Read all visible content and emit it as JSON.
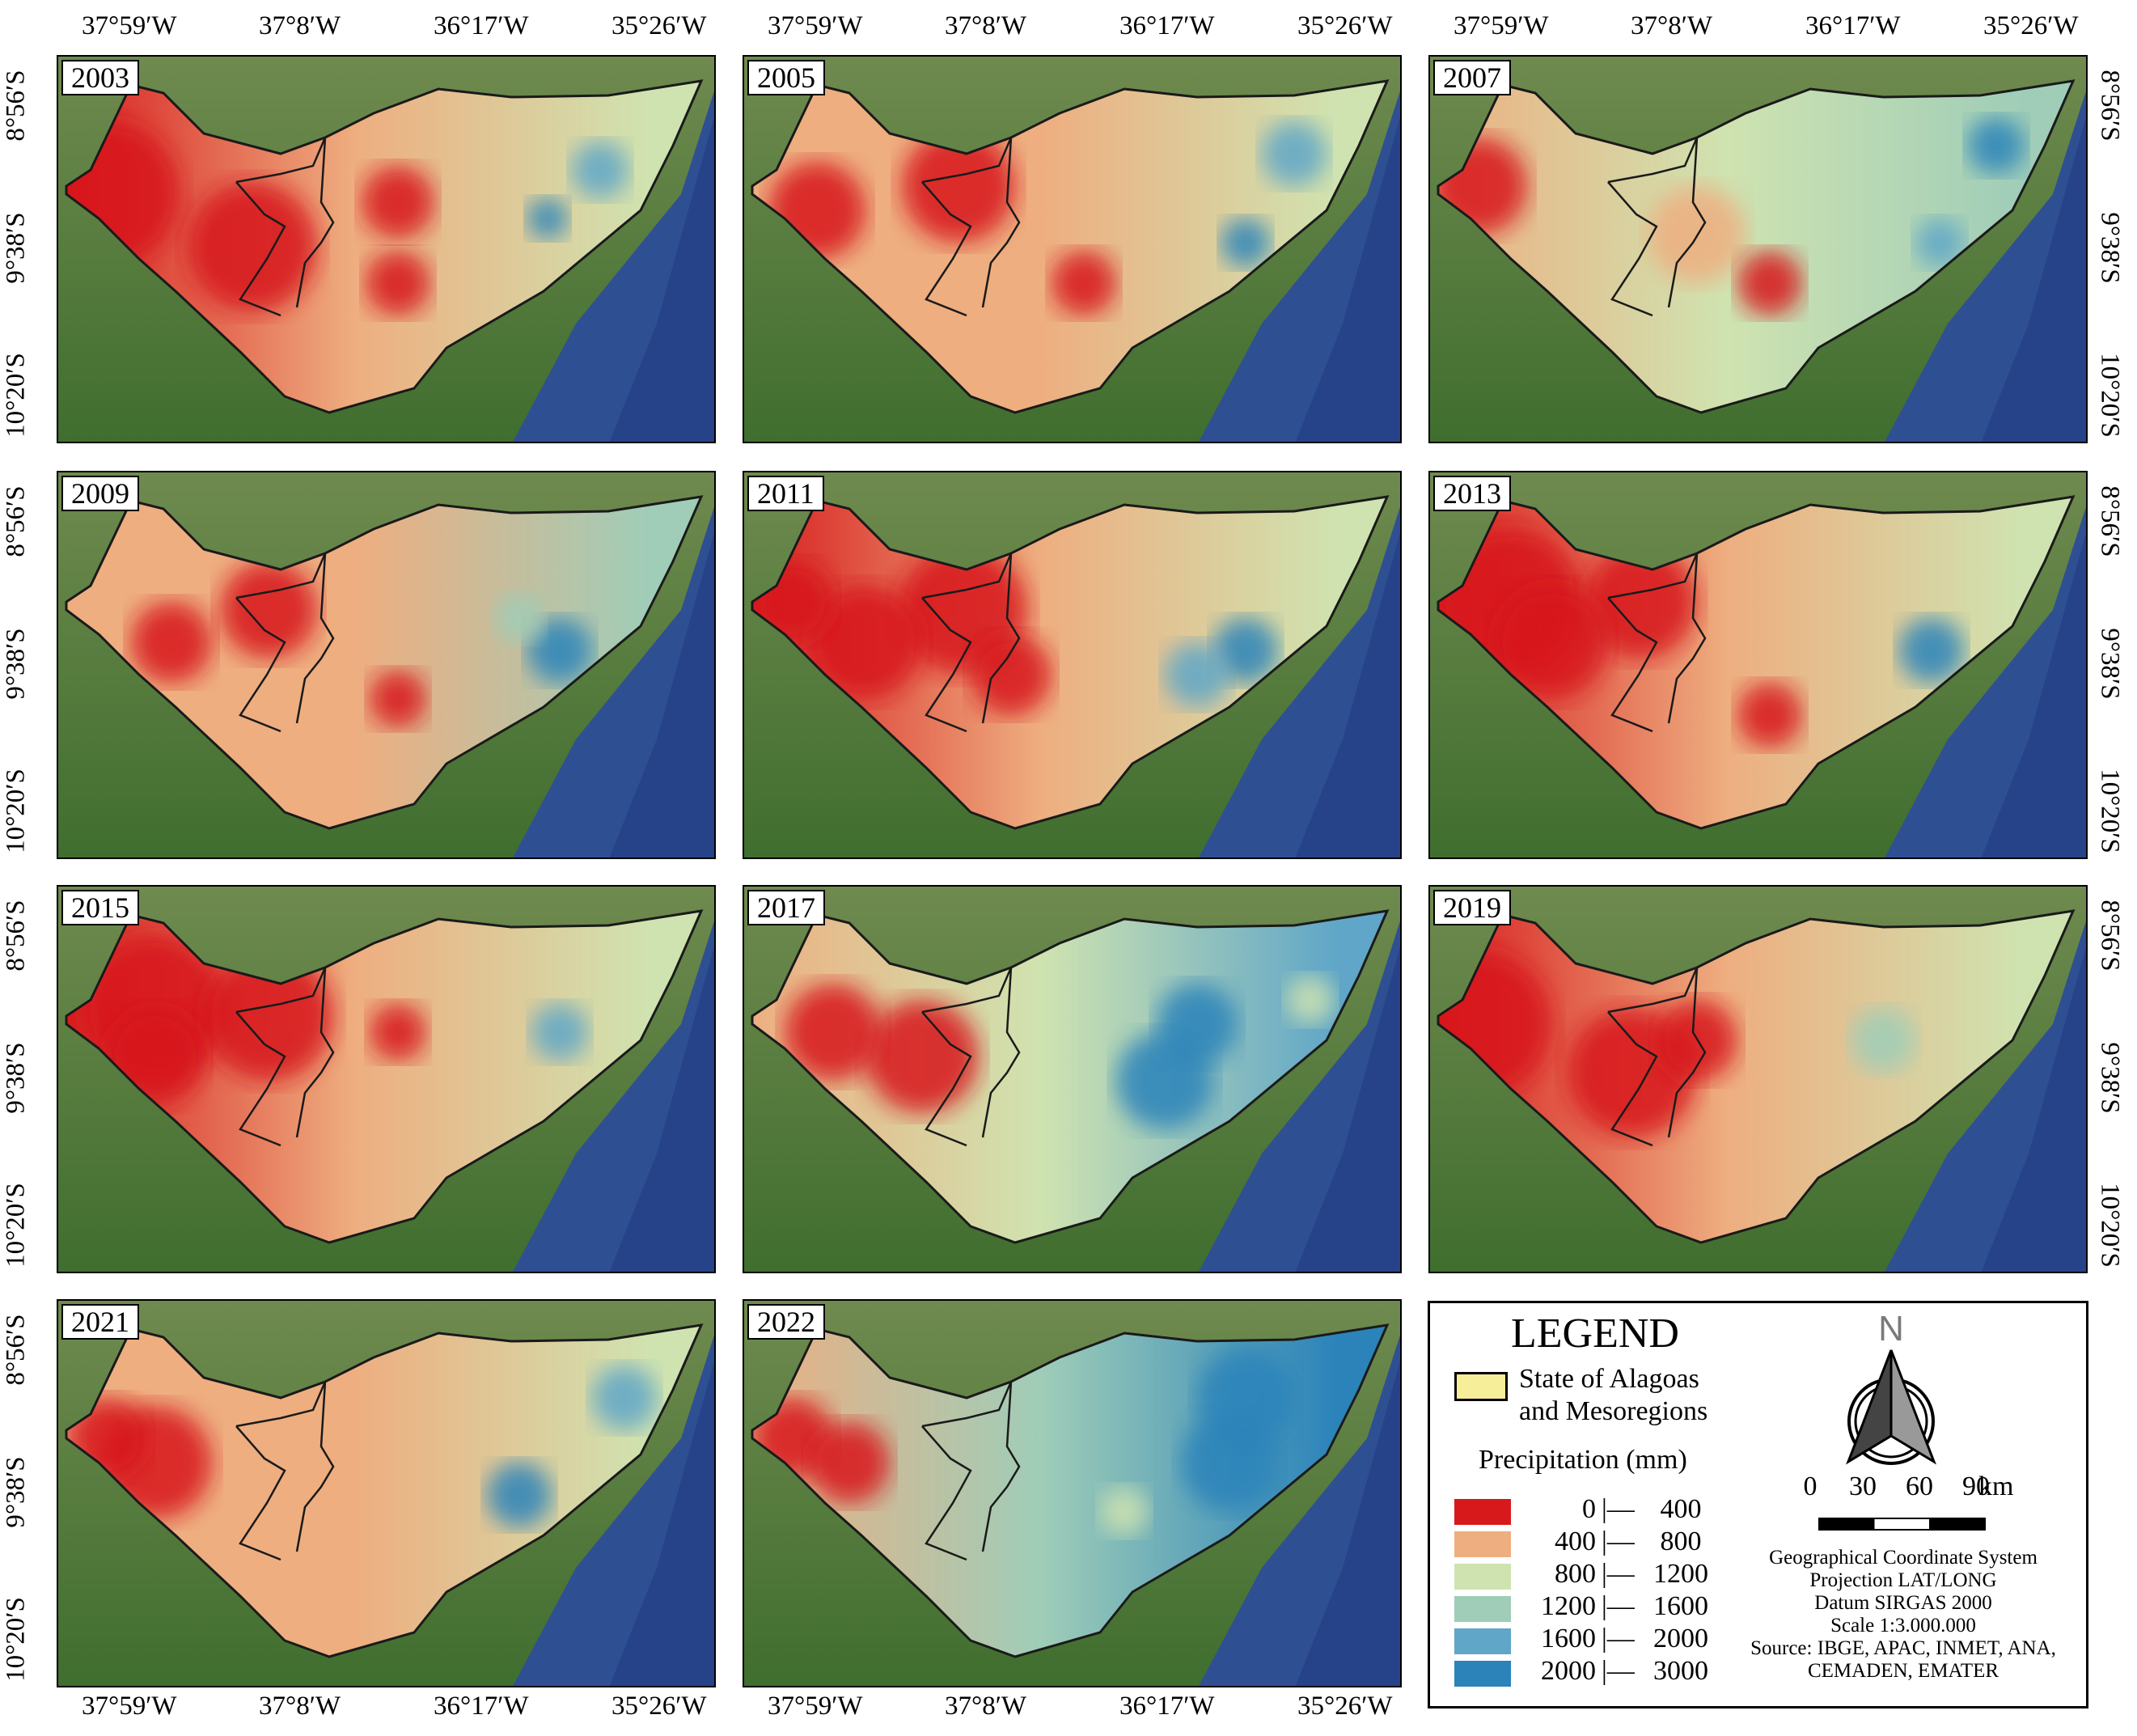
{
  "maps": [
    {
      "year": "2003"
    },
    {
      "year": "2005"
    },
    {
      "year": "2007"
    },
    {
      "year": "2009"
    },
    {
      "year": "2011"
    },
    {
      "year": "2013"
    },
    {
      "year": "2015"
    },
    {
      "year": "2017"
    },
    {
      "year": "2019"
    },
    {
      "year": "2021"
    },
    {
      "year": "2022"
    }
  ],
  "longitude_ticks": [
    "37°59′W",
    "37°8′W",
    "36°17′W",
    "35°26′W"
  ],
  "latitude_ticks": [
    "8°56′S",
    "9°38′S",
    "10°20′S"
  ],
  "legend": {
    "title": "LEGEND",
    "boundary_label_line1": "State of Alagoas",
    "boundary_label_line2": "and Mesoregions",
    "precipitation_title": "Precipitation (mm)",
    "classes": [
      {
        "low": "0",
        "high": "400",
        "color": "#d7191c"
      },
      {
        "low": "400",
        "high": "800",
        "color": "#eeae80"
      },
      {
        "low": "800",
        "high": "1200",
        "color": "#cfe3b0"
      },
      {
        "low": "1200",
        "high": "1600",
        "color": "#9fcdb8"
      },
      {
        "low": "1600",
        "high": "2000",
        "color": "#5fa6c8"
      },
      {
        "low": "2000",
        "high": "3000",
        "color": "#2b83ba"
      }
    ],
    "separator": "|—",
    "north_label": "N",
    "scale_numbers": [
      "0",
      "30",
      "60",
      "90"
    ],
    "scale_unit": "km",
    "info_lines": [
      "Geographical Coordinate System",
      "Projection LAT/LONG",
      "Datum SIRGAS 2000",
      "Scale 1:3.000.000",
      "Source: IBGE, APAC, INMET, ANA,",
      "CEMADEN, EMATER"
    ]
  }
}
